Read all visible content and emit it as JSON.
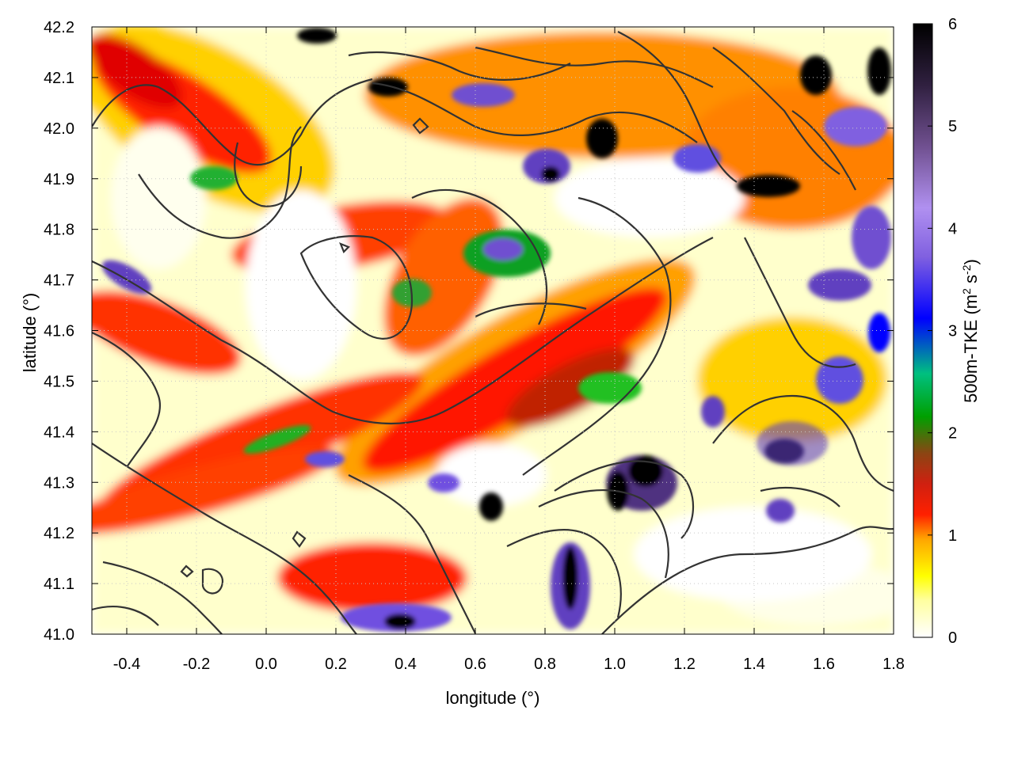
{
  "chart_data": {
    "type": "heatmap",
    "title": "",
    "xlabel": "longitude (°)",
    "ylabel": "latitude (°)",
    "xlim": [
      -0.5,
      1.8
    ],
    "ylim": [
      41.0,
      42.2
    ],
    "x_ticks": [
      -0.4,
      -0.2,
      0.0,
      0.2,
      0.4,
      0.6,
      0.8,
      1.0,
      1.2,
      1.4,
      1.6,
      1.8
    ],
    "x_tick_labels": [
      "-0.4",
      "-0.2",
      "0.0",
      "0.2",
      "0.4",
      "0.6",
      "0.8",
      "1.0",
      "1.2",
      "1.4",
      "1.6",
      "1.8"
    ],
    "y_ticks": [
      41.0,
      41.1,
      41.2,
      41.3,
      41.4,
      41.5,
      41.6,
      41.7,
      41.8,
      41.9,
      42.0,
      42.1,
      42.2
    ],
    "y_tick_labels": [
      "41.0",
      "41.1",
      "41.2",
      "41.3",
      "41.4",
      "41.5",
      "41.6",
      "41.7",
      "41.8",
      "41.9",
      "42.0",
      "42.1",
      "42.2"
    ],
    "grid": true,
    "colorbar": {
      "label": "500m-TKE (m² s⁻²)",
      "label_main": "500m-TKE (m",
      "label_sup1": "2",
      "label_mid": " s",
      "label_sup2": "-2",
      "label_end": ")",
      "range": [
        0,
        6
      ],
      "ticks": [
        0,
        1,
        2,
        3,
        4,
        5,
        6
      ],
      "tick_labels": [
        "0",
        "1",
        "2",
        "3",
        "4",
        "5",
        "6"
      ],
      "colors": [
        "#ffffff",
        "#ffff00",
        "#ff8c00",
        "#ff0000",
        "#a0522d",
        "#00c000",
        "#0000ff",
        "#9370db",
        "#b090f0",
        "#000000"
      ]
    },
    "contours": "topography isolines (black)",
    "field_description_kind": "gridded TKE field"
  }
}
